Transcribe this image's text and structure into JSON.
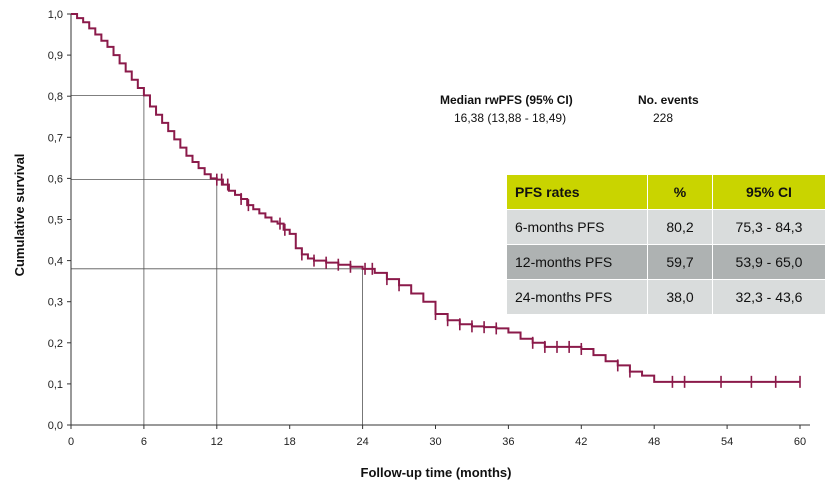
{
  "chart_data": {
    "type": "line",
    "xlabel": "Follow-up time (months)",
    "ylabel": "Cumulative survival",
    "xlim": [
      0,
      60
    ],
    "ylim": [
      0,
      1.0
    ],
    "x_ticks": [
      "0",
      "6",
      "12",
      "18",
      "24",
      "30",
      "36",
      "42",
      "48",
      "54",
      "60"
    ],
    "y_ticks": [
      "0,0",
      "0,1",
      "0,2",
      "0,3",
      "0,4",
      "0,5",
      "0,6",
      "0,7",
      "0,8",
      "0,9",
      "1,0"
    ],
    "series": [
      {
        "color": "#8b1a4a",
        "x": [
          0,
          0.5,
          1,
          1.5,
          2,
          2.5,
          3,
          3.5,
          4,
          4.5,
          5,
          5.5,
          6,
          6.5,
          7,
          7.5,
          8,
          8.5,
          9,
          9.5,
          10,
          10.5,
          11,
          11.5,
          12,
          12.5,
          13,
          13.5,
          14,
          14.5,
          15,
          15.5,
          16,
          16.5,
          17,
          17.5,
          18,
          18.5,
          19,
          19.5,
          20,
          21,
          22,
          23,
          24,
          25,
          26,
          27,
          28,
          29,
          30,
          31,
          32,
          33,
          34,
          35,
          36,
          37,
          38,
          39,
          40,
          41,
          42,
          43,
          44,
          45,
          46,
          47,
          48,
          50,
          52,
          54,
          56,
          58,
          60
        ],
        "y": [
          1.0,
          0.99,
          0.98,
          0.965,
          0.95,
          0.935,
          0.92,
          0.9,
          0.88,
          0.86,
          0.84,
          0.82,
          0.802,
          0.775,
          0.755,
          0.735,
          0.715,
          0.695,
          0.675,
          0.655,
          0.64,
          0.625,
          0.61,
          0.6,
          0.597,
          0.585,
          0.57,
          0.56,
          0.55,
          0.535,
          0.525,
          0.515,
          0.505,
          0.495,
          0.49,
          0.475,
          0.465,
          0.43,
          0.415,
          0.405,
          0.4,
          0.395,
          0.39,
          0.385,
          0.38,
          0.37,
          0.355,
          0.34,
          0.32,
          0.3,
          0.27,
          0.255,
          0.245,
          0.24,
          0.238,
          0.235,
          0.225,
          0.21,
          0.2,
          0.19,
          0.19,
          0.19,
          0.185,
          0.17,
          0.155,
          0.145,
          0.13,
          0.12,
          0.105,
          0.105,
          0.105,
          0.105,
          0.105,
          0.105,
          0.105
        ]
      }
    ],
    "censor_x": [
      12,
      12.4,
      12.9,
      14,
      14.6,
      17.2,
      17.6,
      19,
      20,
      21,
      22,
      23,
      24.2,
      24.8,
      26,
      27,
      30,
      31,
      32,
      33,
      34,
      35,
      38,
      39,
      40,
      41,
      42,
      45,
      46,
      49.5,
      50.5,
      53.5,
      56,
      58,
      60
    ],
    "reference_points": [
      {
        "x": 6,
        "y": 0.802
      },
      {
        "x": 12,
        "y": 0.597
      },
      {
        "x": 24,
        "y": 0.38
      }
    ]
  },
  "median": {
    "header_median": "Median rwPFS (95% CI)",
    "value_median": "16,38 (13,88 - 18,49)",
    "header_events": "No.  events",
    "value_events": "228"
  },
  "table": {
    "headers": [
      "PFS rates",
      "%",
      "95% CI"
    ],
    "rows": [
      [
        "6-months PFS",
        "80,2",
        "75,3 - 84,3"
      ],
      [
        "12-months PFS",
        "59,7",
        "53,9 - 65,0"
      ],
      [
        "24-months PFS",
        "38,0",
        "32,3 - 43,6"
      ]
    ],
    "header_color": "#c9d400"
  }
}
